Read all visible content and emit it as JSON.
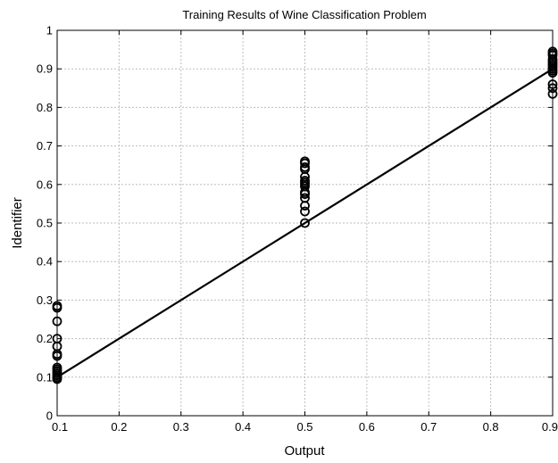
{
  "chart_data": {
    "type": "scatter",
    "title": "Training Results of Wine Classification Problem",
    "xlabel": "Output",
    "ylabel": "Identifier",
    "xlim": [
      0.1,
      0.9
    ],
    "ylim": [
      0,
      1
    ],
    "xticks": [
      "0.1",
      "0.2",
      "0.3",
      "0.4",
      "0.5",
      "0.6",
      "0.7",
      "0.8",
      "0.9"
    ],
    "yticks": [
      "0",
      "0.1",
      "0.2",
      "0.3",
      "0.4",
      "0.5",
      "0.6",
      "0.7",
      "0.8",
      "0.9",
      "1"
    ],
    "grid": true,
    "legend": "none",
    "colors": {
      "marker": "#000000",
      "line": "#000000",
      "grid": "#bdbdbd"
    },
    "series": [
      {
        "type": "scatter",
        "marker": "circle-open",
        "points": [
          [
            0.1,
            0.285
          ],
          [
            0.1,
            0.28
          ],
          [
            0.1,
            0.245
          ],
          [
            0.1,
            0.2
          ],
          [
            0.1,
            0.18
          ],
          [
            0.1,
            0.16
          ],
          [
            0.1,
            0.155
          ],
          [
            0.1,
            0.125
          ],
          [
            0.1,
            0.12
          ],
          [
            0.1,
            0.115
          ],
          [
            0.1,
            0.11
          ],
          [
            0.1,
            0.105
          ],
          [
            0.1,
            0.1
          ],
          [
            0.1,
            0.098
          ],
          [
            0.1,
            0.095
          ],
          [
            0.5,
            0.66
          ],
          [
            0.5,
            0.655
          ],
          [
            0.5,
            0.645
          ],
          [
            0.5,
            0.64
          ],
          [
            0.5,
            0.62
          ],
          [
            0.5,
            0.61
          ],
          [
            0.5,
            0.605
          ],
          [
            0.5,
            0.6
          ],
          [
            0.5,
            0.595
          ],
          [
            0.5,
            0.58
          ],
          [
            0.5,
            0.575
          ],
          [
            0.5,
            0.565
          ],
          [
            0.5,
            0.545
          ],
          [
            0.5,
            0.53
          ],
          [
            0.5,
            0.5
          ],
          [
            0.9,
            0.945
          ],
          [
            0.9,
            0.94
          ],
          [
            0.9,
            0.935
          ],
          [
            0.9,
            0.925
          ],
          [
            0.9,
            0.92
          ],
          [
            0.9,
            0.915
          ],
          [
            0.9,
            0.91
          ],
          [
            0.9,
            0.905
          ],
          [
            0.9,
            0.9
          ],
          [
            0.9,
            0.895
          ],
          [
            0.9,
            0.89
          ],
          [
            0.9,
            0.86
          ],
          [
            0.9,
            0.85
          ],
          [
            0.9,
            0.835
          ]
        ]
      },
      {
        "type": "line",
        "points": [
          [
            0.1,
            0.1
          ],
          [
            0.9,
            0.9
          ]
        ]
      }
    ]
  }
}
